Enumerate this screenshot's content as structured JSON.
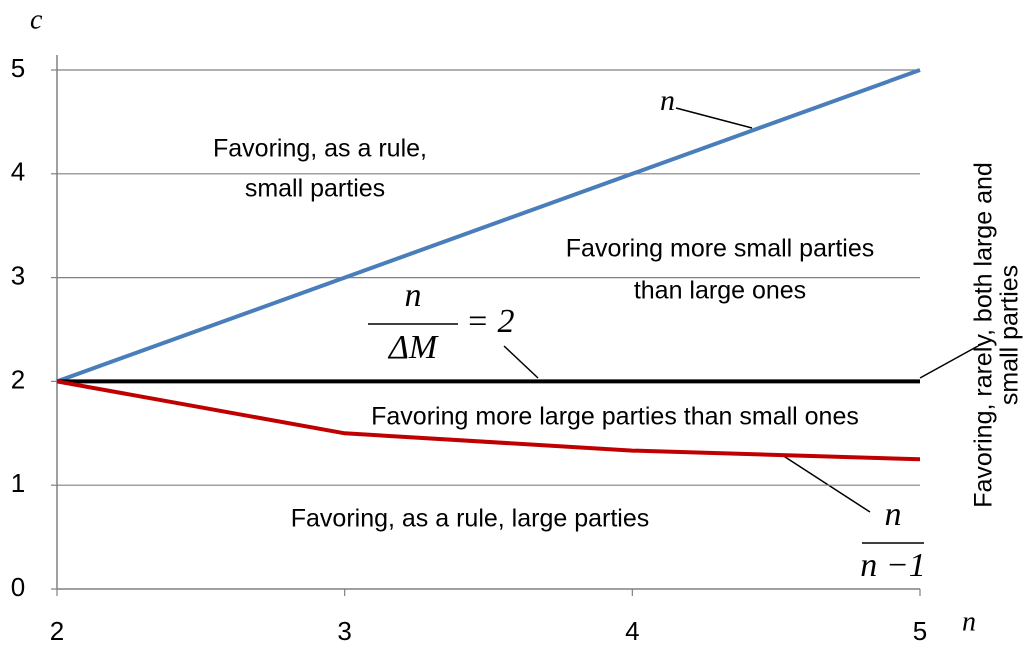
{
  "chart_data": {
    "type": "line",
    "x_label": "n",
    "y_label": "c",
    "x": [
      2,
      3,
      4,
      5
    ],
    "xlim": [
      2,
      5
    ],
    "ylim": [
      0,
      5
    ],
    "xticks": [
      2,
      3,
      4,
      5
    ],
    "yticks": [
      0,
      1,
      2,
      3,
      4,
      5
    ],
    "grid": true,
    "series": [
      {
        "label": {
          "text": "n"
        },
        "color": "#4a7ebb",
        "values": [
          2,
          3,
          4,
          5
        ]
      },
      {
        "label": {
          "numerator": "n",
          "denominator": "ΔM",
          "rest": "= 2"
        },
        "color": "#000000",
        "values": [
          2,
          2,
          2,
          2
        ]
      },
      {
        "label": {
          "numerator": "n",
          "denominator": "n −1"
        },
        "color": "#c00000",
        "values": [
          2,
          1.5,
          1.3333,
          1.25
        ]
      }
    ],
    "regions": [
      [
        "Favoring, as a rule,",
        "small parties"
      ],
      [
        "Favoring more small parties",
        "than large ones"
      ],
      [
        "Favoring more large parties than small ones"
      ],
      [
        "Favoring, as a rule, large parties"
      ],
      [
        "Favoring, rarely, both large and",
        "small parties"
      ]
    ]
  }
}
